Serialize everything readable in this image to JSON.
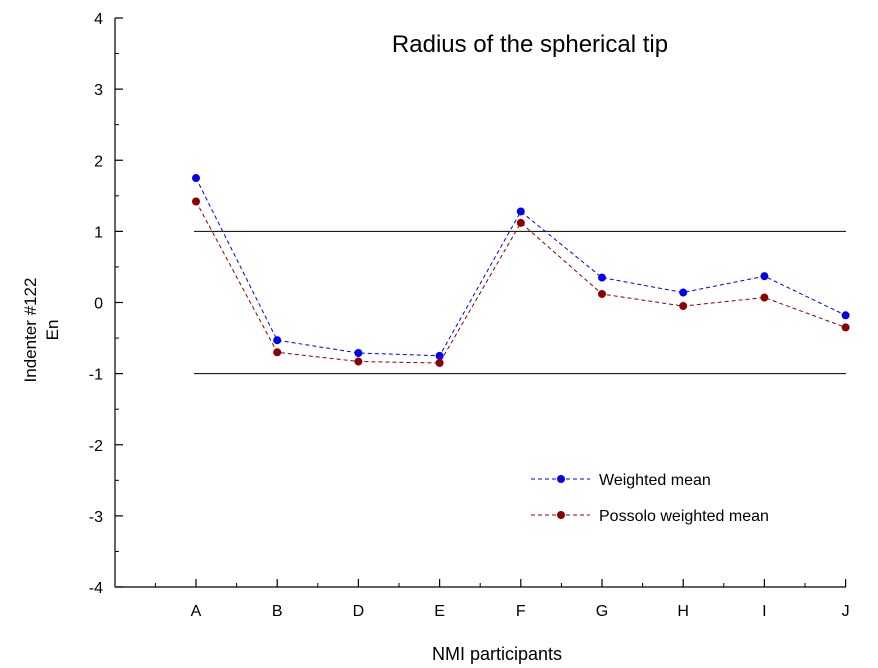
{
  "chart_data": {
    "type": "line",
    "title": "Radius of the spherical tip",
    "xlabel": "NMI participants",
    "ylabel_line1": "Indenter #122",
    "ylabel_line2": "En",
    "categories": [
      "A",
      "B",
      "D",
      "E",
      "F",
      "G",
      "H",
      "I",
      "J"
    ],
    "ylim": [
      -4,
      4
    ],
    "yticks": [
      "4",
      "3",
      "2",
      "1",
      "0",
      "-1",
      "-2",
      "-3",
      "-4"
    ],
    "ytick_values": [
      4,
      3,
      2,
      1,
      0,
      -1,
      -2,
      -3,
      -4
    ],
    "reference_lines": [
      1,
      -1
    ],
    "grid": false,
    "legend_position": "lower-right",
    "series": [
      {
        "name": "Weighted mean",
        "color": "#0000ee",
        "line_style": "dashed",
        "values": [
          1.75,
          -0.53,
          -0.71,
          -0.75,
          1.28,
          0.35,
          0.14,
          0.37,
          -0.18
        ]
      },
      {
        "name": "Possolo weighted mean",
        "color": "#8b0000",
        "line_style": "dashed",
        "values": [
          1.42,
          -0.7,
          -0.83,
          -0.85,
          1.12,
          0.12,
          -0.05,
          0.07,
          -0.35
        ]
      }
    ]
  }
}
